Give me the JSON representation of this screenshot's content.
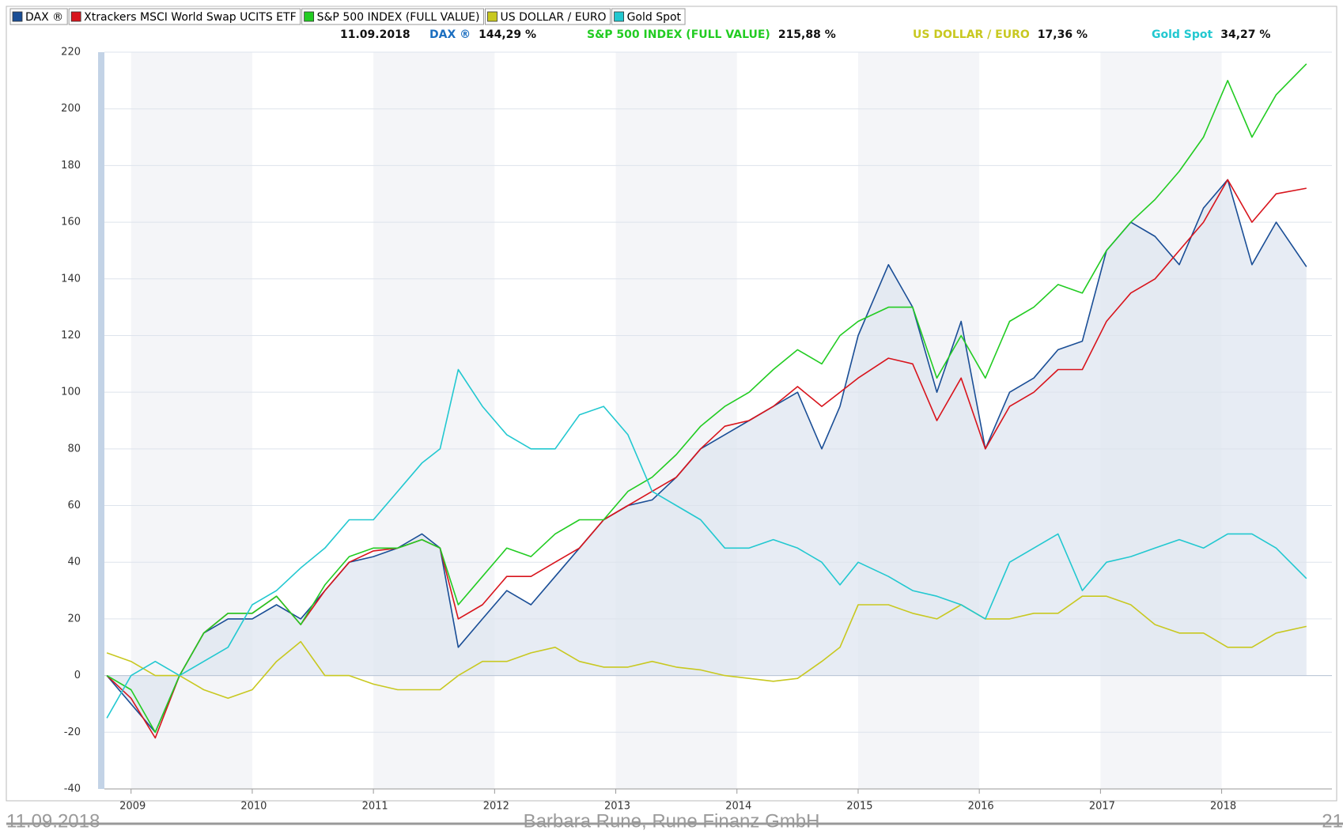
{
  "chart_data": {
    "type": "line",
    "x": [
      2008.8,
      2009.0,
      2009.2,
      2009.4,
      2009.6,
      2009.8,
      2010.0,
      2010.2,
      2010.4,
      2010.6,
      2010.8,
      2011.0,
      2011.2,
      2011.4,
      2011.55,
      2011.7,
      2011.9,
      2012.1,
      2012.3,
      2012.5,
      2012.7,
      2012.9,
      2013.1,
      2013.3,
      2013.5,
      2013.7,
      2013.9,
      2014.1,
      2014.3,
      2014.5,
      2014.7,
      2014.85,
      2015.0,
      2015.25,
      2015.45,
      2015.65,
      2015.85,
      2016.05,
      2016.25,
      2016.45,
      2016.65,
      2016.85,
      2017.05,
      2017.25,
      2017.45,
      2017.65,
      2017.85,
      2018.05,
      2018.25,
      2018.45,
      2018.7
    ],
    "series": [
      {
        "name": "DAX ®",
        "color": "#1a4e96",
        "area": true,
        "values": [
          0,
          -10,
          -20,
          0,
          15,
          20,
          20,
          25,
          20,
          30,
          40,
          42,
          45,
          50,
          45,
          10,
          20,
          30,
          25,
          35,
          45,
          55,
          60,
          62,
          70,
          80,
          85,
          90,
          95,
          100,
          80,
          95,
          120,
          145,
          130,
          100,
          125,
          80,
          100,
          105,
          115,
          118,
          150,
          160,
          155,
          145,
          165,
          175,
          145,
          160,
          144.29
        ]
      },
      {
        "name": "Xtrackers MSCI World Swap UCITS ETF",
        "color": "#d8141c",
        "values": [
          0,
          -8,
          -22,
          0,
          15,
          22,
          22,
          28,
          18,
          30,
          40,
          44,
          45,
          48,
          45,
          20,
          25,
          35,
          35,
          40,
          45,
          55,
          60,
          65,
          70,
          80,
          88,
          90,
          95,
          102,
          95,
          100,
          105,
          112,
          110,
          90,
          105,
          80,
          95,
          100,
          108,
          108,
          125,
          135,
          140,
          150,
          160,
          175,
          160,
          170,
          172
        ]
      },
      {
        "name": "S&P 500 INDEX (FULL VALUE)",
        "color": "#22cc22",
        "values": [
          0,
          -5,
          -20,
          0,
          15,
          22,
          22,
          28,
          18,
          32,
          42,
          45,
          45,
          48,
          45,
          25,
          35,
          45,
          42,
          50,
          55,
          55,
          65,
          70,
          78,
          88,
          95,
          100,
          108,
          115,
          110,
          120,
          125,
          130,
          130,
          105,
          120,
          105,
          125,
          130,
          138,
          135,
          150,
          160,
          168,
          178,
          190,
          210,
          190,
          205,
          215.88
        ]
      },
      {
        "name": "US DOLLAR / EURO",
        "color": "#c8c820",
        "values": [
          8,
          5,
          0,
          0,
          -5,
          -8,
          -5,
          5,
          12,
          0,
          0,
          -3,
          -5,
          -5,
          -5,
          0,
          5,
          5,
          8,
          10,
          5,
          3,
          3,
          5,
          3,
          2,
          0,
          -1,
          -2,
          -1,
          5,
          10,
          25,
          25,
          22,
          20,
          25,
          20,
          20,
          22,
          22,
          28,
          28,
          25,
          18,
          15,
          15,
          10,
          10,
          15,
          17.36
        ]
      },
      {
        "name": "Gold Spot",
        "color": "#22c8d0",
        "values": [
          -15,
          0,
          5,
          0,
          5,
          10,
          25,
          30,
          38,
          45,
          55,
          55,
          65,
          75,
          80,
          108,
          95,
          85,
          80,
          80,
          92,
          95,
          85,
          65,
          60,
          55,
          45,
          45,
          48,
          45,
          40,
          32,
          40,
          35,
          30,
          28,
          25,
          20,
          40,
          45,
          50,
          30,
          40,
          42,
          45,
          48,
          45,
          50,
          50,
          45,
          34.27
        ]
      }
    ],
    "xlim": [
      2008.78,
      2018.91
    ],
    "xticks": [
      2009,
      2010,
      2011,
      2012,
      2013,
      2014,
      2015,
      2016,
      2017,
      2018
    ],
    "ylim": [
      -40,
      220
    ],
    "yticks": [
      -40,
      -20,
      0,
      20,
      40,
      60,
      80,
      100,
      120,
      140,
      160,
      180,
      200,
      220
    ],
    "grid": true,
    "summary": {
      "date": "11.09.2018",
      "items": [
        {
          "name": "DAX ®",
          "color": "#1a6ec0",
          "value": 144.29,
          "value_label": "144,29 %"
        },
        {
          "name": "S&P 500 INDEX (FULL VALUE)",
          "color": "#22cc22",
          "value": 215.88,
          "value_label": "215,88 %"
        },
        {
          "name": "US DOLLAR / EURO",
          "color": "#c8c820",
          "value": 17.36,
          "value_label": "17,36 %"
        },
        {
          "name": "Gold Spot",
          "color": "#22c8d0",
          "value": 34.27,
          "value_label": "34,27 %"
        }
      ]
    }
  },
  "footer": {
    "date": "11.09.2018",
    "author": "Barbara Rune, Rune Finanz GmbH",
    "page": "21"
  }
}
